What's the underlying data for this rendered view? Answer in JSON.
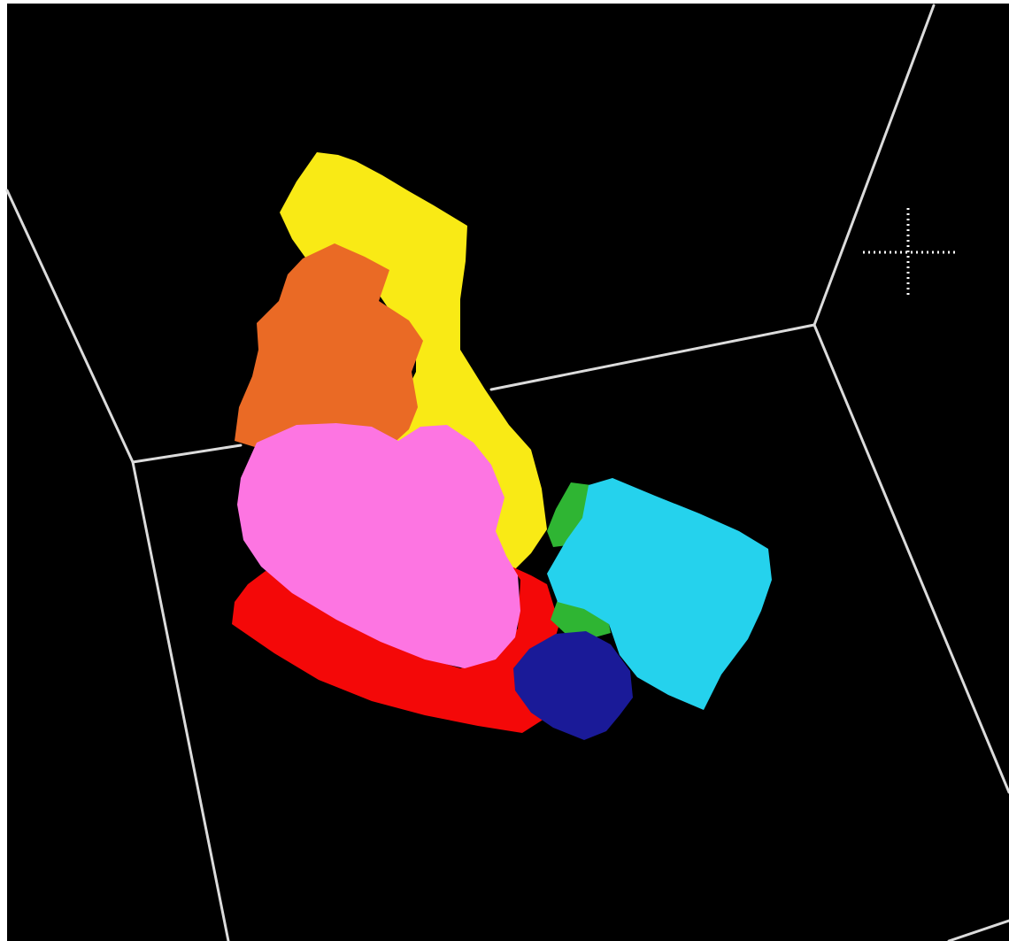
{
  "viewer": {
    "background_color": "#000000",
    "frame_color": "#dcdcdc",
    "cursor_color": "#ffffff"
  },
  "segments": [
    {
      "name": "segment-yellow",
      "color": "#f9ea15"
    },
    {
      "name": "segment-orange",
      "color": "#ea6a25"
    },
    {
      "name": "segment-pink",
      "color": "#fd75e2"
    },
    {
      "name": "segment-red",
      "color": "#f40808"
    },
    {
      "name": "segment-green",
      "color": "#2fb533"
    },
    {
      "name": "segment-cyan",
      "color": "#25d2ed"
    },
    {
      "name": "segment-navy",
      "color": "#1a1a98"
    }
  ],
  "icons": {
    "cursor": "crosshair-cursor-icon"
  }
}
